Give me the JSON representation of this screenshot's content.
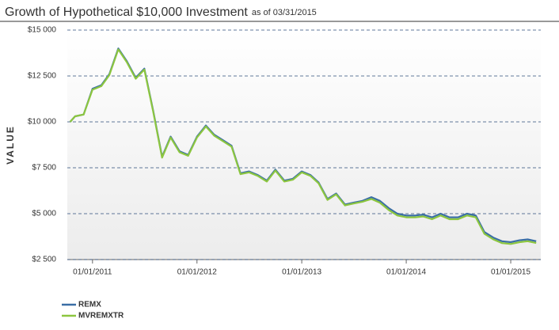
{
  "chart_data": {
    "type": "line",
    "title": "Growth of Hypothetical $10,000 Investment",
    "subtitle": "as of 03/31/2015",
    "y_label": "VALUE",
    "x": [
      "2010-10-15",
      "2010-11-01",
      "2010-12-01",
      "2011-01-01",
      "2011-02-01",
      "2011-03-01",
      "2011-04-01",
      "2011-05-01",
      "2011-06-01",
      "2011-07-01",
      "2011-08-01",
      "2011-09-01",
      "2011-10-01",
      "2011-11-01",
      "2011-12-01",
      "2012-01-01",
      "2012-02-01",
      "2012-03-01",
      "2012-04-01",
      "2012-05-01",
      "2012-06-01",
      "2012-07-01",
      "2012-08-01",
      "2012-09-01",
      "2012-10-01",
      "2012-11-01",
      "2012-12-01",
      "2013-01-01",
      "2013-02-01",
      "2013-03-01",
      "2013-04-01",
      "2013-05-01",
      "2013-06-01",
      "2013-07-01",
      "2013-08-01",
      "2013-09-01",
      "2013-10-01",
      "2013-11-01",
      "2013-12-01",
      "2014-01-01",
      "2014-02-01",
      "2014-03-01",
      "2014-04-01",
      "2014-05-01",
      "2014-06-01",
      "2014-07-01",
      "2014-08-01",
      "2014-09-01",
      "2014-10-01",
      "2014-11-01",
      "2014-12-01",
      "2015-01-01",
      "2015-02-01",
      "2015-03-01",
      "2015-03-31"
    ],
    "series": [
      {
        "name": "REMX",
        "color": "#3a6ea5",
        "values": [
          10000,
          10300,
          10400,
          11800,
          12000,
          12600,
          14000,
          13300,
          12400,
          12900,
          10600,
          8100,
          9200,
          8400,
          8200,
          9200,
          9800,
          9300,
          9000,
          8700,
          7200,
          7300,
          7100,
          6800,
          7400,
          6800,
          6900,
          7300,
          7100,
          6700,
          5800,
          6100,
          5500,
          5600,
          5700,
          5900,
          5700,
          5300,
          5000,
          4900,
          4900,
          4950,
          4800,
          5000,
          4800,
          4800,
          5000,
          4900,
          4000,
          3700,
          3500,
          3450,
          3550,
          3600,
          3500
        ]
      },
      {
        "name": "MVREMXTR",
        "color": "#8cc63f",
        "values": [
          10000,
          10300,
          10400,
          11750,
          11950,
          12550,
          13950,
          13250,
          12350,
          12850,
          10550,
          8050,
          9150,
          8350,
          8150,
          9150,
          9750,
          9250,
          8950,
          8650,
          7150,
          7250,
          7050,
          6750,
          7350,
          6750,
          6850,
          7250,
          7050,
          6650,
          5750,
          6050,
          5450,
          5550,
          5650,
          5800,
          5600,
          5200,
          4900,
          4800,
          4800,
          4850,
          4700,
          4900,
          4700,
          4700,
          4900,
          4800,
          3900,
          3600,
          3400,
          3350,
          3450,
          3500,
          3400
        ]
      }
    ],
    "xlim": [
      "2010-10-05",
      "2015-04-16"
    ],
    "xticks": [
      {
        "value": "2011-01-01",
        "label": "01/01/2011"
      },
      {
        "value": "2012-01-01",
        "label": "01/01/2012"
      },
      {
        "value": "2013-01-01",
        "label": "01/01/2013"
      },
      {
        "value": "2014-01-01",
        "label": "01/01/2014"
      },
      {
        "value": "2015-01-01",
        "label": "01/01/2015"
      }
    ],
    "ylim": [
      2500,
      15000
    ],
    "yticks": [
      {
        "value": 2500,
        "label": "$2 500"
      },
      {
        "value": 5000,
        "label": "$5 000"
      },
      {
        "value": 7500,
        "label": "$7 500"
      },
      {
        "value": 10000,
        "label": "$10 000"
      },
      {
        "value": 12500,
        "label": "$12 500"
      },
      {
        "value": 15000,
        "label": "$15 000"
      }
    ],
    "grid": true
  }
}
